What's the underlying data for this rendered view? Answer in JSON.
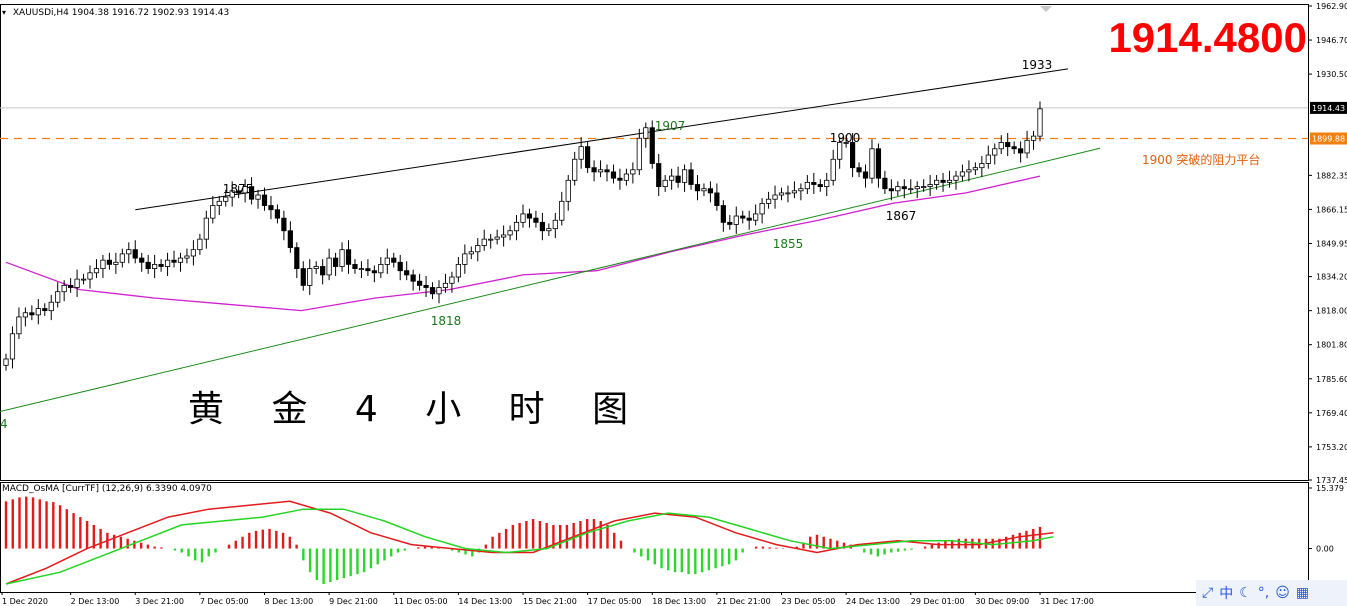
{
  "header": {
    "symbol_glyph": "▾",
    "symbol": "XAUUSDi,H4",
    "ohlc": "1904.38 1916.72 1902.93 1914.43"
  },
  "big_price": "1914.4800",
  "overlay_title": "黄 金 4 小 时 图",
  "macd_label": "MACD_OsMA [CurrTF] (12,26,9) 6.3390 4.0970",
  "tray": {
    "icons": [
      "expand-icon",
      "ime-chinese-icon",
      "moon-icon",
      "dot-icon",
      "emoji-icon",
      "grid-icon"
    ],
    "glyphs": [
      "⤢",
      "中",
      "☾",
      "°,",
      "☺",
      "▦"
    ]
  },
  "colors": {
    "bg": "#ffffff",
    "candle": "#000000",
    "ma": "#d11fd1",
    "support": "#1a8a1a",
    "resistance": "#000000",
    "dashed": "#f08010",
    "macd_pos": "#e31a1a",
    "macd_neg": "#2fd42f",
    "macd_line": "#e31a1a",
    "signal_line": "#23d423",
    "annot_red": "#e06010",
    "annot_green": "#1a7a1a"
  },
  "chart_data": {
    "type": "candlestick",
    "ylim": [
      1737.45,
      1962.9
    ],
    "y_ticks": [
      "1962.90",
      "1946.70",
      "1930.50",
      "1914.43",
      "1899.88",
      "1882.35",
      "1866.15",
      "1849.95",
      "1834.20",
      "1818.00",
      "1801.80",
      "1785.60",
      "1769.40",
      "1753.20",
      "1737.45"
    ],
    "x_ticks": [
      "1 Dec 2020",
      "2 Dec 13:00",
      "3 Dec 21:00",
      "7 Dec 05:00",
      "8 Dec 13:00",
      "9 Dec 21:00",
      "11 Dec 05:00",
      "14 Dec 13:00",
      "15 Dec 21:00",
      "17 Dec 05:00",
      "18 Dec 13:00",
      "21 Dec 21:00",
      "23 Dec 05:00",
      "24 Dec 13:00",
      "29 Dec 01:00",
      "30 Dec 09:00",
      "31 Dec 17:00"
    ],
    "current_price_label": "1914.43",
    "dashed_price_label": "1899.88",
    "dashed_level": 1899.88,
    "candles_close": [
      1795,
      1807,
      1815,
      1817,
      1816,
      1819,
      1818,
      1822,
      1827,
      1830,
      1829,
      1833,
      1833,
      1836,
      1838,
      1842,
      1840,
      1841,
      1845,
      1847,
      1843,
      1841,
      1838,
      1840,
      1839,
      1842,
      1841,
      1843,
      1844,
      1847,
      1852,
      1862,
      1868,
      1870,
      1872,
      1875,
      1874,
      1877,
      1871,
      1873,
      1868,
      1866,
      1862,
      1856,
      1848,
      1838,
      1830,
      1838,
      1839,
      1835,
      1843,
      1839,
      1847,
      1840,
      1838,
      1838,
      1837,
      1836,
      1840,
      1843,
      1841,
      1837,
      1835,
      1832,
      1830,
      1829,
      1826,
      1829,
      1831,
      1834,
      1840,
      1845,
      1846,
      1849,
      1852,
      1852,
      1853,
      1854,
      1856,
      1860,
      1864,
      1862,
      1860,
      1856,
      1857,
      1861,
      1870,
      1880,
      1890,
      1896,
      1886,
      1884,
      1885,
      1884,
      1881,
      1880,
      1883,
      1885,
      1900,
      1905,
      1888,
      1877,
      1880,
      1882,
      1879,
      1885,
      1878,
      1875,
      1876,
      1874,
      1868,
      1860,
      1859,
      1863,
      1862,
      1861,
      1864,
      1869,
      1871,
      1873,
      1874,
      1874,
      1875,
      1876,
      1879,
      1878,
      1877,
      1880,
      1890,
      1898,
      1898,
      1886,
      1884,
      1881,
      1895,
      1881,
      1876,
      1875,
      1877,
      1876,
      1876,
      1877,
      1877,
      1878,
      1880,
      1879,
      1880,
      1882,
      1884,
      1885,
      1886,
      1888,
      1892,
      1895,
      1898,
      1896,
      1895,
      1893,
      1899,
      1901,
      1914
    ],
    "ma_curve": [
      [
        1790,
        1841
      ],
      [
        1820,
        1828
      ],
      [
        1842,
        1824
      ],
      [
        1855,
        1821
      ],
      [
        1866,
        1818
      ],
      [
        1874,
        1824
      ],
      [
        1880,
        1828
      ],
      [
        1889,
        1835
      ],
      [
        1898,
        1837
      ],
      [
        1905,
        1846
      ],
      [
        1913,
        1854
      ],
      [
        1922,
        1861
      ],
      [
        1932,
        1869
      ],
      [
        1941,
        1874
      ],
      [
        1955,
        1882
      ]
    ],
    "resistance_line": [
      [
        1875,
        1866
      ],
      [
        1933,
        1933
      ]
    ],
    "support_line": [
      [
        1768,
        1770
      ],
      [
        1900,
        1900
      ]
    ],
    "annotations": [
      {
        "text": "1875",
        "price": 1875,
        "color": "dark"
      },
      {
        "text": "1907",
        "price": 1907,
        "color": "green"
      },
      {
        "text": "1900",
        "price": 1900,
        "color": "dark"
      },
      {
        "text": "1933",
        "price": 1933,
        "color": "dark"
      },
      {
        "text": "1818",
        "price": 1818,
        "color": "green"
      },
      {
        "text": "1855",
        "price": 1855,
        "color": "green"
      },
      {
        "text": "1867",
        "price": 1867,
        "color": "dark"
      },
      {
        "text": "4",
        "price": 1768,
        "color": "green"
      },
      {
        "text": "1900 突破的阻力平台",
        "price": 1892,
        "color": "red"
      }
    ],
    "macd": {
      "ylim_labels": [
        "15.379",
        "0.00"
      ],
      "ylim": [
        -9,
        15.379
      ],
      "hist": [
        12,
        12.5,
        13,
        13.2,
        13,
        12.5,
        12,
        11.8,
        11,
        10,
        9,
        8,
        7,
        6,
        5,
        4,
        3.5,
        3,
        2.5,
        2,
        1.5,
        1,
        0.5,
        0.3,
        0,
        -0.5,
        -1,
        -2,
        -3,
        -3.5,
        -2,
        -1,
        0,
        1,
        2,
        3,
        4,
        4.5,
        4.8,
        5,
        4.5,
        4,
        3,
        1,
        -3,
        -6,
        -8,
        -9,
        -8.5,
        -8,
        -7.5,
        -7,
        -6.5,
        -6,
        -5,
        -4,
        -3,
        -2,
        -1,
        -0.5,
        0,
        0.3,
        0.5,
        0.5,
        0.3,
        0,
        -0.5,
        -1,
        -1.5,
        -2,
        -1,
        1,
        3,
        4,
        5,
        6,
        6.5,
        7,
        7.5,
        7,
        6.5,
        6,
        6,
        6,
        6.5,
        7,
        7.5,
        7.5,
        7,
        6,
        4,
        2,
        0,
        -1,
        -2,
        -3,
        -4,
        -5,
        -5.5,
        -6,
        -6,
        -6.5,
        -6.5,
        -6,
        -5.5,
        -5,
        -4.5,
        -4,
        -3,
        -1,
        0,
        0.5,
        0.5,
        0.3,
        0.2,
        0.1,
        0,
        0.5,
        1.5,
        3,
        3.5,
        3,
        2.5,
        2,
        1.5,
        1,
        0,
        -1,
        -1.5,
        -2,
        -1.5,
        -1,
        -0.8,
        -0.5,
        -0.3,
        0,
        0.5,
        1,
        1.5,
        2,
        2.2,
        2.5,
        2.5,
        2.5,
        2.5,
        2.5,
        2.5,
        2.5,
        3,
        3.5,
        4,
        4.5,
        5,
        5.5
      ],
      "macd_line": [
        [
          0,
          -9
        ],
        [
          6,
          -5
        ],
        [
          12,
          0
        ],
        [
          18,
          4
        ],
        [
          24,
          8
        ],
        [
          30,
          10
        ],
        [
          36,
          11
        ],
        [
          42,
          12
        ],
        [
          48,
          9
        ],
        [
          54,
          4
        ],
        [
          60,
          1
        ],
        [
          66,
          0
        ],
        [
          72,
          -1
        ],
        [
          78,
          -1
        ],
        [
          84,
          3
        ],
        [
          90,
          7
        ],
        [
          96,
          9
        ],
        [
          102,
          8
        ],
        [
          108,
          4
        ],
        [
          114,
          1
        ],
        [
          120,
          -1
        ],
        [
          126,
          1
        ],
        [
          132,
          2
        ],
        [
          138,
          1
        ],
        [
          144,
          1
        ],
        [
          150,
          3
        ],
        [
          155,
          4
        ]
      ],
      "signal_line": [
        [
          0,
          -9
        ],
        [
          8,
          -6
        ],
        [
          14,
          -2
        ],
        [
          20,
          2
        ],
        [
          26,
          6
        ],
        [
          32,
          7
        ],
        [
          38,
          8
        ],
        [
          44,
          10
        ],
        [
          50,
          10
        ],
        [
          56,
          7
        ],
        [
          62,
          3
        ],
        [
          68,
          0
        ],
        [
          74,
          -1
        ],
        [
          80,
          0
        ],
        [
          86,
          4
        ],
        [
          92,
          7
        ],
        [
          98,
          9
        ],
        [
          104,
          8
        ],
        [
          110,
          5
        ],
        [
          116,
          2
        ],
        [
          122,
          0
        ],
        [
          128,
          1
        ],
        [
          134,
          2
        ],
        [
          140,
          2
        ],
        [
          146,
          1
        ],
        [
          152,
          2
        ],
        [
          155,
          3
        ]
      ]
    }
  }
}
